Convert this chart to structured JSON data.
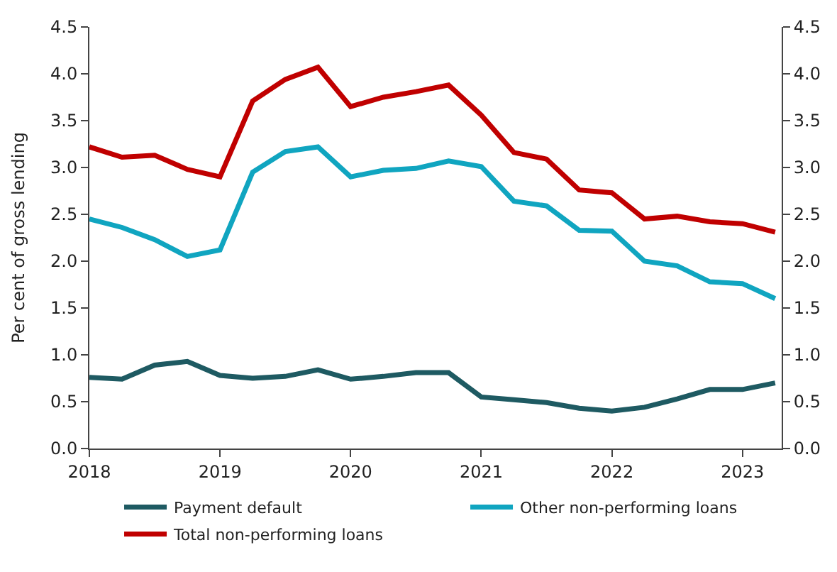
{
  "chart_data": {
    "type": "line",
    "ylabel": "Per cent of gross lending",
    "x": [
      2018,
      2018.25,
      2018.5,
      2018.75,
      2019,
      2019.25,
      2019.5,
      2019.75,
      2020,
      2020.25,
      2020.5,
      2020.75,
      2021,
      2021.25,
      2021.5,
      2021.75,
      2022,
      2022.25,
      2022.5,
      2022.75,
      2023,
      2023.25
    ],
    "series": [
      {
        "name": "Payment default",
        "color": "#1e5a62",
        "values": [
          0.76,
          0.74,
          0.89,
          0.93,
          0.78,
          0.75,
          0.77,
          0.84,
          0.74,
          0.77,
          0.81,
          0.81,
          0.55,
          0.52,
          0.49,
          0.43,
          0.4,
          0.44,
          0.53,
          0.63,
          0.63,
          0.7
        ]
      },
      {
        "name": "Other non-performing loans",
        "color": "#10a5c0",
        "values": [
          2.45,
          2.36,
          2.23,
          2.05,
          2.12,
          2.95,
          3.17,
          3.22,
          2.9,
          2.97,
          2.99,
          3.07,
          3.01,
          2.64,
          2.59,
          2.33,
          2.32,
          2.0,
          1.95,
          1.78,
          1.76,
          1.6
        ]
      },
      {
        "name": "Total non-performing loans",
        "color": "#c00000",
        "values": [
          3.22,
          3.11,
          3.13,
          2.98,
          2.9,
          3.71,
          3.94,
          4.07,
          3.65,
          3.75,
          3.81,
          3.88,
          3.56,
          3.16,
          3.09,
          2.76,
          2.73,
          2.45,
          2.48,
          2.42,
          2.4,
          2.31
        ]
      }
    ],
    "xlim": [
      2018,
      2023.3
    ],
    "xticks": [
      2018,
      2019,
      2020,
      2021,
      2022,
      2023
    ],
    "ylim": [
      0,
      4.5
    ],
    "yticks": [
      {
        "value": 0,
        "label": "0.0"
      },
      {
        "value": 0.5,
        "label": "0.5"
      },
      {
        "value": 1,
        "label": "1.0"
      },
      {
        "value": 1.5,
        "label": "1.5"
      },
      {
        "value": 2,
        "label": "2.0"
      },
      {
        "value": 2.5,
        "label": "2.5"
      },
      {
        "value": 3,
        "label": "3.0"
      },
      {
        "value": 3.5,
        "label": "3.5"
      },
      {
        "value": 4,
        "label": "4.0"
      },
      {
        "value": 4.5,
        "label": "4.5"
      }
    ],
    "y2lim": [
      0,
      4.5
    ],
    "y2ticks": [
      {
        "value": 0,
        "label": "0.0"
      },
      {
        "value": 0.5,
        "label": "0.5"
      },
      {
        "value": 1,
        "label": "1.0"
      },
      {
        "value": 1.5,
        "label": "1.5"
      },
      {
        "value": 2,
        "label": "2.0"
      },
      {
        "value": 2.5,
        "label": "2.5"
      },
      {
        "value": 3,
        "label": "3.0"
      },
      {
        "value": 3.5,
        "label": "3.5"
      },
      {
        "value": 4,
        "label": "4.0"
      },
      {
        "value": 4.5,
        "label": "4.5"
      }
    ],
    "legend": "bottom",
    "marker": "none",
    "line_style": "solid"
  }
}
